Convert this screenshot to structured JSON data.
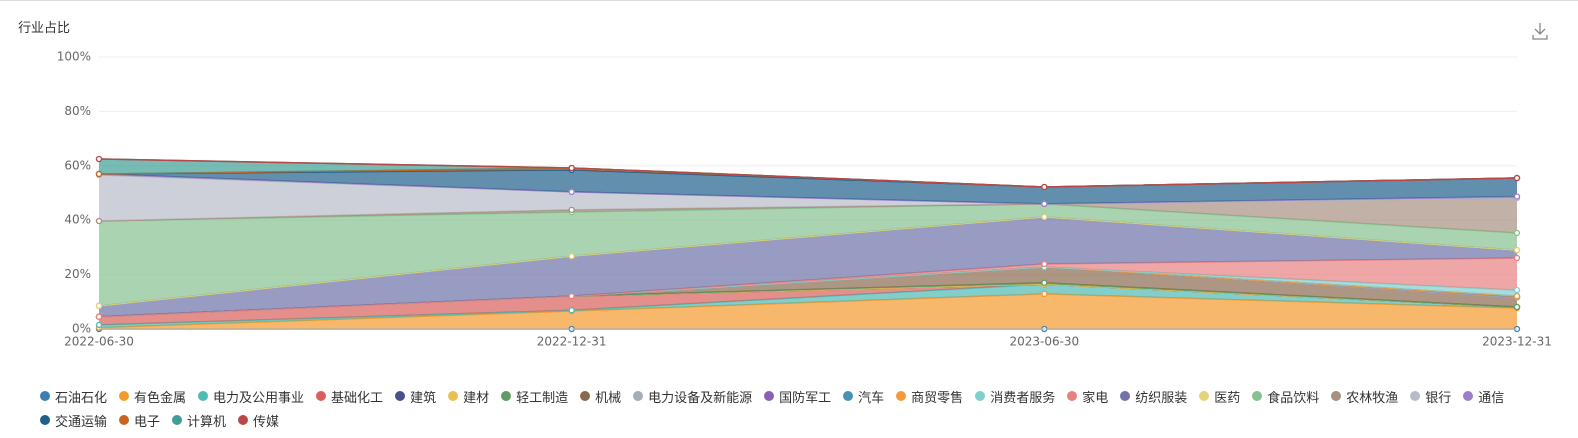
{
  "chart_data": {
    "type": "stacked_area",
    "title": "行业占比",
    "categories": [
      "2022-06-30",
      "2022-12-31",
      "2023-06-30",
      "2023-12-31"
    ],
    "ylim": [
      0,
      100
    ],
    "yticks": [
      {
        "value": 0,
        "label": "0%"
      },
      {
        "value": 20,
        "label": "20%"
      },
      {
        "value": 40,
        "label": "40%"
      },
      {
        "value": 60,
        "label": "60%"
      },
      {
        "value": 80,
        "label": "80%"
      },
      {
        "value": 100,
        "label": "100%"
      }
    ],
    "grid": true,
    "series": [
      {
        "name": "石油石化",
        "color": "#3a7fb0",
        "values": [
          0,
          0,
          0,
          0
        ]
      },
      {
        "name": "有色金属",
        "color": "#f39a2c",
        "values": [
          0.5,
          6.6,
          12.9,
          7.7
        ]
      },
      {
        "name": "电力及公用事业",
        "color": "#4fb9b3",
        "values": [
          1.0,
          0.3,
          3.6,
          0.4
        ]
      },
      {
        "name": "基础化工",
        "color": "#d9605a",
        "values": [
          3.0,
          5.2,
          0,
          0
        ]
      },
      {
        "name": "建筑",
        "color": "#4a4f8f",
        "values": [
          0,
          0,
          0,
          0
        ]
      },
      {
        "name": "建材",
        "color": "#e8c14e",
        "values": [
          0,
          0,
          0,
          0
        ]
      },
      {
        "name": "轻工制造",
        "color": "#5e9e66",
        "values": [
          0,
          0,
          0.5,
          0
        ]
      },
      {
        "name": "机械",
        "color": "#8a6a4f",
        "values": [
          0,
          0,
          5.8,
          3.5
        ]
      },
      {
        "name": "电力设备及新能源",
        "color": "#a5adb8",
        "values": [
          0,
          0,
          0,
          0
        ]
      },
      {
        "name": "国防军工",
        "color": "#8b5fb3",
        "values": [
          0,
          0,
          0,
          0.5
        ]
      },
      {
        "name": "汽车",
        "color": "#4a8fb5",
        "values": [
          0,
          0,
          0,
          0
        ]
      },
      {
        "name": "商贸零售",
        "color": "#f59a3c",
        "values": [
          0,
          0,
          0,
          0
        ]
      },
      {
        "name": "消费者服务",
        "color": "#7fcfcf",
        "values": [
          0,
          0,
          0,
          2.2
        ]
      },
      {
        "name": "家电",
        "color": "#e88080",
        "values": [
          0,
          0,
          1.1,
          11.8
        ]
      },
      {
        "name": "纺织服装",
        "color": "#6e72a8",
        "values": [
          4.0,
          14.7,
          17.3,
          2.9
        ]
      },
      {
        "name": "医药",
        "color": "#e6d27a",
        "values": [
          0,
          0,
          0,
          0
        ]
      },
      {
        "name": "食品饮料",
        "color": "#86c290",
        "values": [
          31.2,
          16.2,
          4.8,
          6.3
        ]
      },
      {
        "name": "农林牧渔",
        "color": "#a89080",
        "values": [
          0,
          0.8,
          0,
          12.9
        ]
      },
      {
        "name": "银行",
        "color": "#b8bcc8",
        "values": [
          16.9,
          6.6,
          0,
          0
        ]
      },
      {
        "name": "通信",
        "color": "#9b7fc8",
        "values": [
          0.4,
          0,
          0,
          0.5
        ]
      },
      {
        "name": "交通运输",
        "color": "#1f5f8b",
        "values": [
          0,
          8.1,
          6.2,
          6.8
        ]
      },
      {
        "name": "电子",
        "color": "#c8641e",
        "values": [
          0,
          0.7,
          0,
          0
        ]
      },
      {
        "name": "计算机",
        "color": "#3f9e95",
        "values": [
          5.5,
          0,
          0,
          0
        ]
      },
      {
        "name": "传媒",
        "color": "#b84848",
        "values": [
          0,
          0,
          0,
          0
        ]
      }
    ]
  }
}
